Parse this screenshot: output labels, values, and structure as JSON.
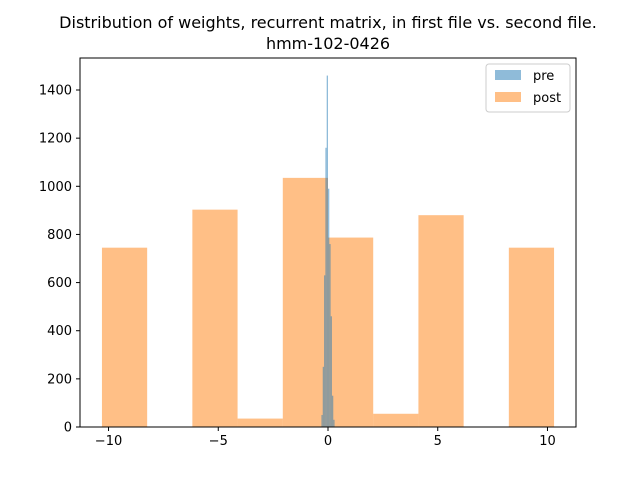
{
  "chart_data": {
    "type": "bar",
    "title": "Distribution of weights, recurrent matrix, in first file vs. second file.",
    "subtitle": "hmm-102-0426",
    "xlabel": "",
    "ylabel": "",
    "xlim": [
      -11.3,
      11.3
    ],
    "ylim": [
      0,
      1533
    ],
    "x_ticks": [
      -10,
      -5,
      0,
      5,
      10
    ],
    "x_tick_labels": [
      "−10",
      "−5",
      "0",
      "5",
      "10"
    ],
    "y_ticks": [
      0,
      200,
      400,
      600,
      800,
      1000,
      1200,
      1400
    ],
    "grid": false,
    "legend_position": "top-right",
    "series": [
      {
        "name": "pre",
        "color": "#1f77b4",
        "opacity": 0.5,
        "bin_edges": [
          -0.3,
          -0.24,
          -0.18,
          -0.12,
          -0.06,
          0.0,
          0.06,
          0.12,
          0.18,
          0.24,
          0.3
        ],
        "counts": [
          50,
          250,
          630,
          1160,
          1460,
          990,
          760,
          460,
          130,
          30
        ]
      },
      {
        "name": "post",
        "color": "#ff7f0e",
        "opacity": 0.5,
        "bin_edges": [
          -10.3,
          -8.24,
          -6.18,
          -4.12,
          -2.06,
          0.0,
          2.06,
          4.12,
          6.18,
          8.24,
          10.3
        ],
        "counts": [
          745,
          0,
          903,
          35,
          1035,
          787,
          55,
          880,
          0,
          745
        ]
      }
    ]
  }
}
